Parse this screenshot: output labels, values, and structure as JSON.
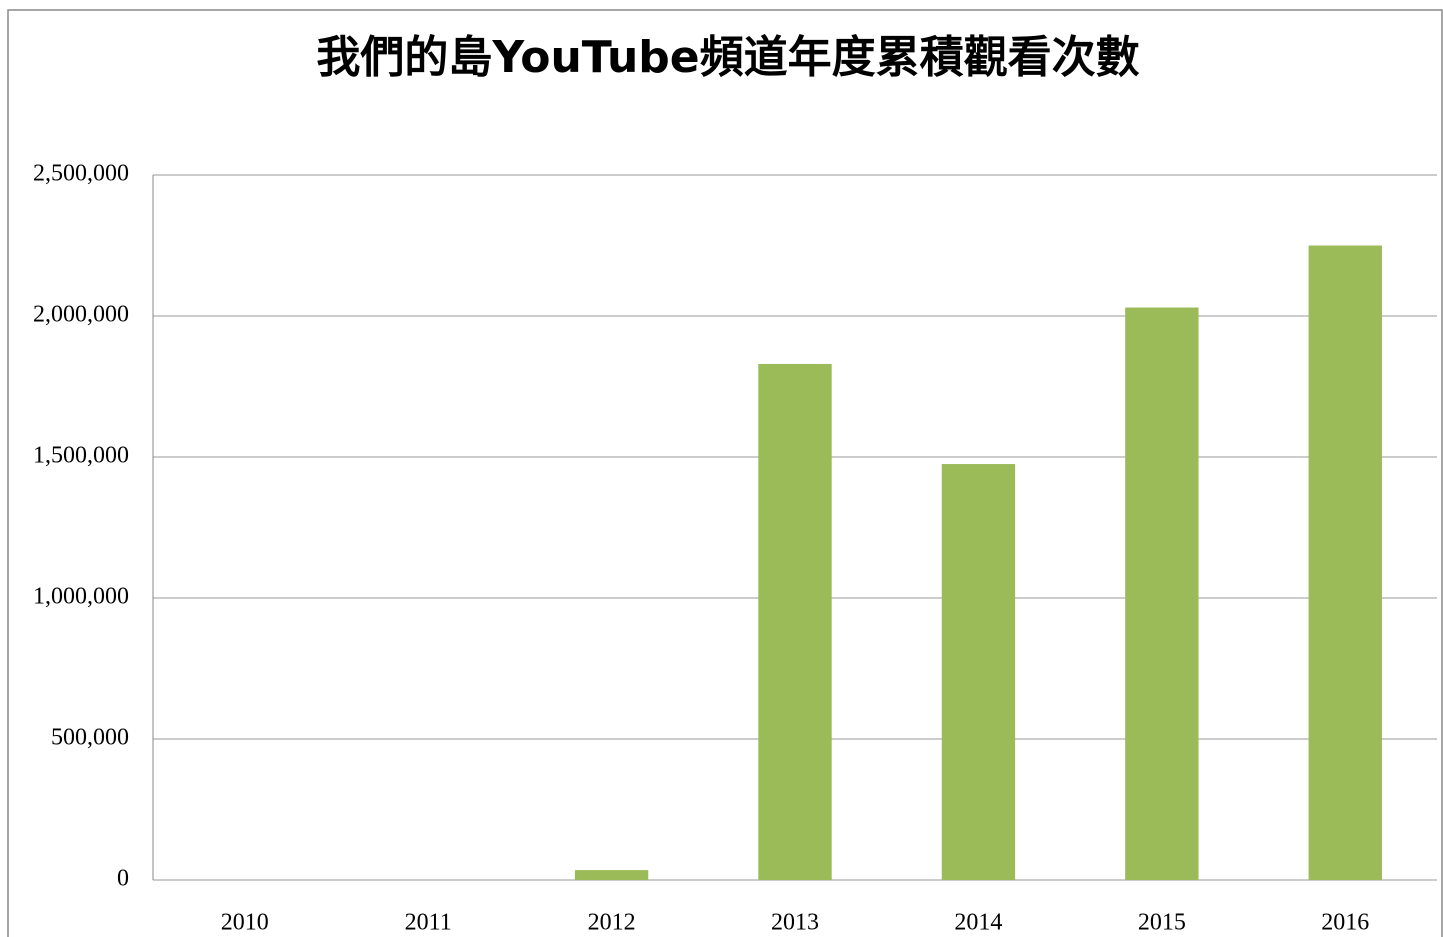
{
  "chart_data": {
    "type": "bar",
    "title": "我們的島YouTube頻道年度累積觀看次數",
    "categories": [
      "2010",
      "2011",
      "2012",
      "2013",
      "2014",
      "2015",
      "2016"
    ],
    "values": [
      0,
      0,
      35000,
      1830000,
      1475000,
      2030000,
      2250000
    ],
    "color": "#9bbb59",
    "ylim": [
      0,
      2500000
    ],
    "yticks": [
      0,
      {
        "value": 500000,
        "label": "500,000"
      },
      {
        "value": 1000000,
        "label": "1,000,000"
      },
      {
        "value": 1500000,
        "label": "1,500,000"
      },
      {
        "value": 2000000,
        "label": "2,000,000"
      },
      {
        "value": 2500000,
        "label": "2,500,000"
      }
    ],
    "grid": true
  }
}
